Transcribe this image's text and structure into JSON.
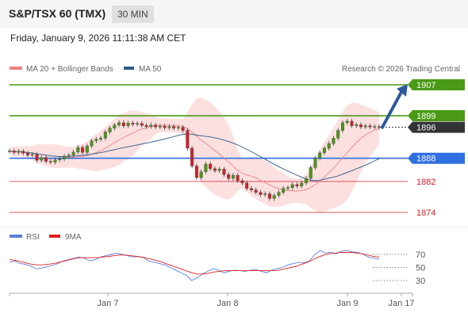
{
  "header": {
    "title": "S&P/TSX 60 (TMX)",
    "timeframe": "30 MIN"
  },
  "timestamp": "Friday, January 9, 2026 11:11:38 AM CET",
  "copyright": "Research © 2026 Trading Central",
  "chart_data": [
    {
      "type": "line",
      "legend": [
        {
          "name": "MA 20 + Bollinger Bands",
          "color": "#f08080"
        },
        {
          "name": "MA 50",
          "color": "#2d5a8c"
        }
      ],
      "x_ticks": [
        "Jan 7",
        "Jan 8",
        "Jan 9",
        "Jan 17"
      ],
      "price_series": [
        1889.9,
        1889.5,
        1889.8,
        1889.3,
        1888.8,
        1889.0,
        1887.5,
        1888.2,
        1887.2,
        1887.0,
        1887.6,
        1887.8,
        1888.5,
        1888.8,
        1889.6,
        1890.8,
        1889.5,
        1891.2,
        1892.5,
        1892.9,
        1893.2,
        1894.8,
        1895.8,
        1896.6,
        1897.2,
        1896.4,
        1897.1,
        1896.8,
        1897.0,
        1896.5,
        1896.2,
        1896.6,
        1896.1,
        1896.3,
        1895.9,
        1896.2,
        1895.8,
        1896.0,
        1895.2,
        1890.6,
        1886.0,
        1883.0,
        1884.5,
        1886.5,
        1885.3,
        1884.8,
        1885.2,
        1883.8,
        1882.8,
        1883.6,
        1882.2,
        1881.6,
        1880.2,
        1879.8,
        1879.2,
        1878.6,
        1878.8,
        1877.6,
        1878.4,
        1879.2,
        1880.2,
        1880.4,
        1881.2,
        1880.8,
        1881.6,
        1882.8,
        1885.6,
        1888.0,
        1889.4,
        1890.6,
        1891.8,
        1893.2,
        1895.2,
        1897.2,
        1897.6,
        1896.4,
        1896.7,
        1896.1,
        1896.4,
        1896.1,
        1896.2,
        1896.0
      ],
      "levels": [
        {
          "label": "1907",
          "value": 1907,
          "kind": "resistance",
          "color": "#4a9a16"
        },
        {
          "label": "1899",
          "value": 1899,
          "kind": "resistance",
          "color": "#4a9a16"
        },
        {
          "label": "1896",
          "value": 1896,
          "kind": "last",
          "color": "#333333"
        },
        {
          "label": "1888",
          "value": 1888,
          "kind": "pivot",
          "color": "#2f6fdf"
        },
        {
          "label": "1882",
          "value": 1882,
          "kind": "support",
          "color": "#d0202a"
        },
        {
          "label": "1874",
          "value": 1874,
          "kind": "support",
          "color": "#d0202a"
        }
      ],
      "forecast_arrow": {
        "from": 1896,
        "to": 1907
      }
    },
    {
      "type": "line",
      "legend": [
        {
          "name": "RSI",
          "color": "#5b7fdc"
        },
        {
          "name": "9MA",
          "color": "#e02020"
        }
      ],
      "y_ticks": [
        70,
        50,
        30
      ],
      "rsi_series": [
        58,
        60,
        56,
        55,
        52,
        48,
        49,
        51,
        53,
        56,
        60,
        62,
        64,
        66,
        64,
        60,
        62,
        66,
        68,
        70,
        72,
        70,
        68,
        66,
        67,
        65,
        60,
        58,
        56,
        54,
        50,
        46,
        42,
        38,
        30,
        34,
        40,
        44,
        48,
        46,
        42,
        44,
        46,
        45,
        44,
        46,
        47,
        44,
        42,
        46,
        48,
        50,
        54,
        56,
        58,
        57,
        60,
        70,
        76,
        72,
        73,
        71,
        75,
        76,
        74,
        73,
        70,
        66,
        64,
        63
      ],
      "ma9_series": [
        62,
        61,
        59,
        57,
        55,
        54,
        54,
        55,
        56,
        58,
        60,
        62,
        64,
        65,
        65,
        65,
        65,
        66,
        67,
        68,
        69,
        69,
        68,
        67,
        66,
        64,
        62,
        60,
        57,
        54,
        51,
        48,
        45,
        42,
        40,
        40,
        41,
        43,
        44,
        45,
        45,
        45,
        45,
        45,
        45,
        45,
        45,
        45,
        45,
        46,
        48,
        50,
        52,
        55,
        58,
        62,
        66,
        69,
        71,
        72,
        73,
        73,
        73,
        72,
        71,
        69,
        67,
        66
      ]
    }
  ]
}
